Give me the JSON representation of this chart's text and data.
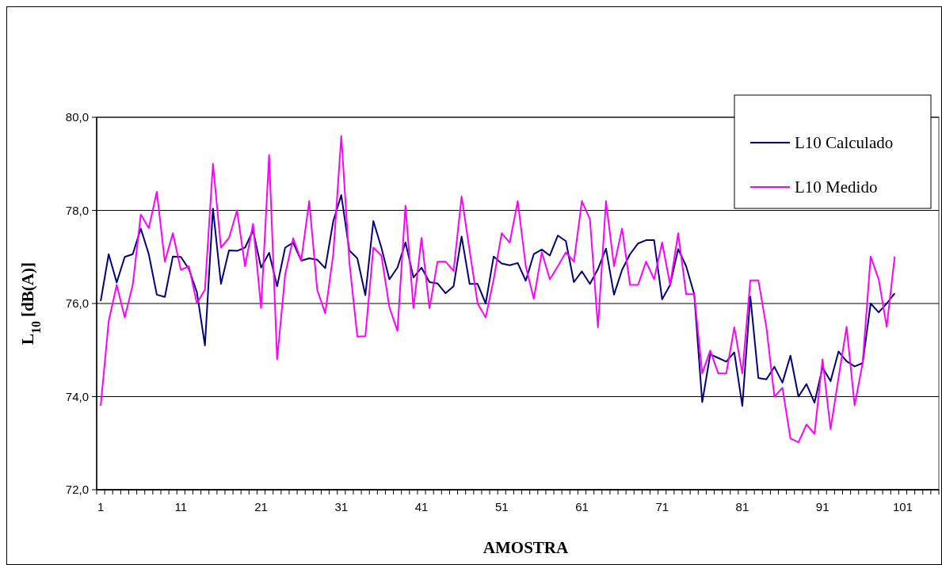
{
  "chart_data": {
    "type": "line",
    "xlabel": "AMOSTRA",
    "ylabel": "L$_{10}$ [dB(A)]",
    "categories": [
      "1",
      null,
      null,
      null,
      null,
      null,
      null,
      null,
      null,
      null,
      "11",
      null,
      null,
      null,
      null,
      null,
      null,
      null,
      null,
      null,
      "21",
      null,
      null,
      null,
      null,
      null,
      null,
      null,
      null,
      null,
      "31",
      null,
      null,
      null,
      null,
      null,
      null,
      null,
      null,
      null,
      "41",
      null,
      null,
      null,
      null,
      null,
      null,
      null,
      null,
      null,
      "51",
      null,
      null,
      null,
      null,
      null,
      null,
      null,
      null,
      null,
      "61",
      null,
      null,
      null,
      null,
      null,
      null,
      null,
      null,
      null,
      "71",
      null,
      null,
      null,
      null,
      null,
      null,
      null,
      null,
      null,
      "81",
      null,
      null,
      null,
      null,
      null,
      null,
      null,
      null,
      null,
      "91",
      null,
      null,
      null,
      null,
      null,
      null,
      null,
      null,
      null,
      "101",
      null,
      null,
      null,
      null
    ],
    "series": [
      {
        "name": "L10 Calculado",
        "color": "#000080",
        "values": [
          76.05,
          77.06,
          76.45,
          77.0,
          77.06,
          77.61,
          77.06,
          76.19,
          76.14,
          77.01,
          77.0,
          76.74,
          76.24,
          75.1,
          78.04,
          76.42,
          77.14,
          77.13,
          77.2,
          77.57,
          76.77,
          77.09,
          76.37,
          77.2,
          77.31,
          76.92,
          76.97,
          76.94,
          76.76,
          77.77,
          78.33,
          77.14,
          76.97,
          76.18,
          77.77,
          77.2,
          76.52,
          76.77,
          77.31,
          76.56,
          76.77,
          76.46,
          76.43,
          76.22,
          76.37,
          77.44,
          76.42,
          76.42,
          76.0,
          77.01,
          76.86,
          76.82,
          76.87,
          76.49,
          77.06,
          77.16,
          77.03,
          77.46,
          77.34,
          76.46,
          76.69,
          76.42,
          76.74,
          77.18,
          76.19,
          76.72,
          77.06,
          77.29,
          77.36,
          77.36,
          76.09,
          76.4,
          77.17,
          76.8,
          76.2,
          73.88,
          74.91,
          74.83,
          74.75,
          74.95,
          73.8,
          76.15,
          74.4,
          74.37,
          74.64,
          74.3,
          74.88,
          74.0,
          74.27,
          73.87,
          74.63,
          74.33,
          74.97,
          74.76,
          74.65,
          74.72,
          76.0,
          75.81,
          76.0,
          76.22,
          null,
          null,
          null,
          null,
          null
        ]
      },
      {
        "name": "L10 Medido",
        "color": "#ff00ff",
        "values": [
          73.8,
          75.62,
          76.4,
          75.7,
          76.4,
          77.91,
          77.62,
          78.4,
          76.9,
          77.51,
          76.72,
          76.8,
          76.0,
          76.3,
          79.0,
          77.2,
          77.41,
          78.0,
          76.8,
          77.71,
          75.9,
          79.19,
          74.8,
          76.62,
          77.4,
          76.92,
          78.2,
          76.29,
          75.79,
          77.06,
          79.6,
          76.9,
          75.29,
          75.3,
          77.2,
          77.03,
          75.92,
          75.41,
          78.1,
          75.9,
          77.41,
          75.9,
          76.9,
          76.9,
          76.7,
          78.3,
          77.14,
          76.0,
          75.7,
          76.52,
          77.51,
          77.31,
          78.2,
          76.8,
          76.1,
          77.1,
          76.52,
          76.8,
          77.1,
          76.9,
          78.2,
          77.81,
          75.49,
          78.2,
          76.8,
          77.61,
          76.4,
          76.4,
          76.9,
          76.52,
          77.31,
          76.4,
          77.51,
          76.2,
          76.2,
          74.5,
          74.99,
          74.5,
          74.5,
          75.49,
          74.5,
          76.5,
          76.5,
          75.49,
          74.0,
          74.19,
          73.1,
          73.02,
          73.4,
          73.2,
          74.8,
          73.3,
          74.41,
          75.5,
          73.81,
          74.72,
          77.01,
          76.52,
          75.5,
          77.01,
          null,
          null,
          null,
          null,
          null
        ]
      }
    ],
    "ylim": [
      72,
      80
    ],
    "yticks": [
      {
        "value": 72,
        "label": "72,0"
      },
      {
        "value": 74,
        "label": "74,0"
      },
      {
        "value": 76,
        "label": "76,0"
      },
      {
        "value": 78,
        "label": "78,0"
      },
      {
        "value": 80,
        "label": "80,0"
      }
    ],
    "grid": "y",
    "legend": "top right",
    "marker": "none",
    "line_style": "solid"
  }
}
